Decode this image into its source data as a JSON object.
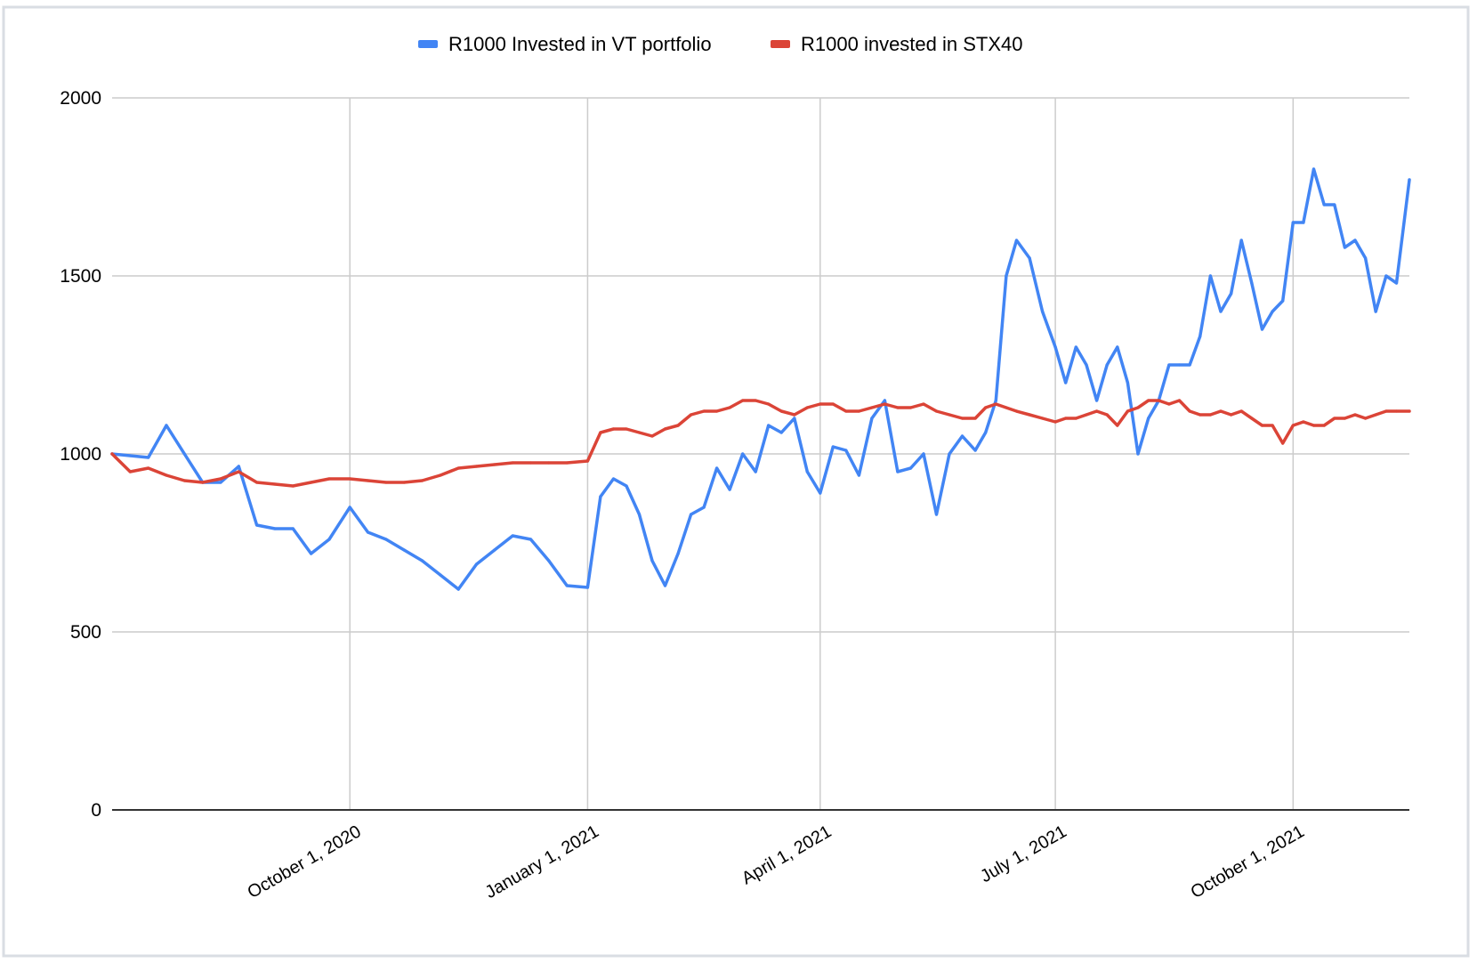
{
  "colors": {
    "background": "#ffffff",
    "grid": "#cccccc",
    "axis": "#333333",
    "sheet_border": "#d9dde3",
    "vt_series": "#4285f4",
    "stx40_series": "#db4437"
  },
  "chart_data": {
    "type": "line",
    "title": "",
    "xlabel": "",
    "ylabel": "",
    "ylim": [
      0,
      2000
    ],
    "xlim": [
      "2020-07-01",
      "2021-11-15"
    ],
    "y_ticks": [
      0,
      500,
      1000,
      1500,
      2000
    ],
    "y_tick_labels": [
      "0",
      "500",
      "1000",
      "1500",
      "2000"
    ],
    "x_ticks": [
      "2020-10-01",
      "2021-01-01",
      "2021-04-01",
      "2021-07-01",
      "2021-10-01"
    ],
    "x_tick_labels": [
      "October 1, 2020",
      "January 1, 2021",
      "April 1, 2021",
      "July 1, 2021",
      "October 1, 2021"
    ],
    "grid": true,
    "legend_position": "top",
    "series": [
      {
        "name": "R1000 Invested in VT portfolio",
        "color": "#4285f4",
        "x": [
          "2020-07-01",
          "2020-07-08",
          "2020-07-15",
          "2020-07-22",
          "2020-07-29",
          "2020-08-05",
          "2020-08-12",
          "2020-08-19",
          "2020-08-26",
          "2020-09-02",
          "2020-09-09",
          "2020-09-16",
          "2020-09-23",
          "2020-10-01",
          "2020-10-08",
          "2020-10-15",
          "2020-10-22",
          "2020-10-29",
          "2020-11-05",
          "2020-11-12",
          "2020-11-19",
          "2020-11-26",
          "2020-12-03",
          "2020-12-10",
          "2020-12-17",
          "2020-12-24",
          "2021-01-01",
          "2021-01-06",
          "2021-01-11",
          "2021-01-16",
          "2021-01-21",
          "2021-01-26",
          "2021-01-31",
          "2021-02-05",
          "2021-02-10",
          "2021-02-15",
          "2021-02-20",
          "2021-02-25",
          "2021-03-02",
          "2021-03-07",
          "2021-03-12",
          "2021-03-17",
          "2021-03-22",
          "2021-03-27",
          "2021-04-01",
          "2021-04-06",
          "2021-04-11",
          "2021-04-16",
          "2021-04-21",
          "2021-04-26",
          "2021-05-01",
          "2021-05-06",
          "2021-05-11",
          "2021-05-16",
          "2021-05-21",
          "2021-05-26",
          "2021-05-31",
          "2021-06-04",
          "2021-06-08",
          "2021-06-12",
          "2021-06-16",
          "2021-06-21",
          "2021-06-26",
          "2021-07-01",
          "2021-07-05",
          "2021-07-09",
          "2021-07-13",
          "2021-07-17",
          "2021-07-21",
          "2021-07-25",
          "2021-07-29",
          "2021-08-02",
          "2021-08-06",
          "2021-08-10",
          "2021-08-14",
          "2021-08-18",
          "2021-08-22",
          "2021-08-26",
          "2021-08-30",
          "2021-09-03",
          "2021-09-07",
          "2021-09-11",
          "2021-09-15",
          "2021-09-19",
          "2021-09-23",
          "2021-09-27",
          "2021-10-01",
          "2021-10-05",
          "2021-10-09",
          "2021-10-13",
          "2021-10-17",
          "2021-10-21",
          "2021-10-25",
          "2021-10-29",
          "2021-11-02",
          "2021-11-06",
          "2021-11-10",
          "2021-11-15"
        ],
        "values": [
          1000,
          995,
          990,
          1080,
          1000,
          920,
          920,
          965,
          800,
          790,
          790,
          720,
          760,
          850,
          780,
          760,
          730,
          700,
          660,
          620,
          690,
          730,
          770,
          760,
          700,
          630,
          625,
          880,
          930,
          910,
          830,
          700,
          630,
          720,
          830,
          850,
          960,
          900,
          1000,
          950,
          1080,
          1060,
          1100,
          950,
          890,
          1020,
          1010,
          940,
          1100,
          1150,
          950,
          960,
          1000,
          830,
          1000,
          1050,
          1010,
          1060,
          1150,
          1500,
          1600,
          1550,
          1400,
          1300,
          1200,
          1300,
          1250,
          1150,
          1250,
          1300,
          1200,
          1000,
          1100,
          1150,
          1250,
          1250,
          1250,
          1330,
          1500,
          1400,
          1450,
          1600,
          1480,
          1350,
          1400,
          1430,
          1650,
          1650,
          1800,
          1700,
          1700,
          1580,
          1600,
          1550,
          1400,
          1500,
          1480,
          1770
        ]
      },
      {
        "name": "R1000 invested in STX40",
        "color": "#db4437",
        "x": [
          "2020-07-01",
          "2020-07-08",
          "2020-07-15",
          "2020-07-22",
          "2020-07-29",
          "2020-08-05",
          "2020-08-12",
          "2020-08-19",
          "2020-08-26",
          "2020-09-02",
          "2020-09-09",
          "2020-09-16",
          "2020-09-23",
          "2020-10-01",
          "2020-10-08",
          "2020-10-15",
          "2020-10-22",
          "2020-10-29",
          "2020-11-05",
          "2020-11-12",
          "2020-11-19",
          "2020-11-26",
          "2020-12-03",
          "2020-12-10",
          "2020-12-17",
          "2020-12-24",
          "2021-01-01",
          "2021-01-06",
          "2021-01-11",
          "2021-01-16",
          "2021-01-21",
          "2021-01-26",
          "2021-01-31",
          "2021-02-05",
          "2021-02-10",
          "2021-02-15",
          "2021-02-20",
          "2021-02-25",
          "2021-03-02",
          "2021-03-07",
          "2021-03-12",
          "2021-03-17",
          "2021-03-22",
          "2021-03-27",
          "2021-04-01",
          "2021-04-06",
          "2021-04-11",
          "2021-04-16",
          "2021-04-21",
          "2021-04-26",
          "2021-05-01",
          "2021-05-06",
          "2021-05-11",
          "2021-05-16",
          "2021-05-21",
          "2021-05-26",
          "2021-05-31",
          "2021-06-04",
          "2021-06-08",
          "2021-06-12",
          "2021-06-16",
          "2021-06-21",
          "2021-06-26",
          "2021-07-01",
          "2021-07-05",
          "2021-07-09",
          "2021-07-13",
          "2021-07-17",
          "2021-07-21",
          "2021-07-25",
          "2021-07-29",
          "2021-08-02",
          "2021-08-06",
          "2021-08-10",
          "2021-08-14",
          "2021-08-18",
          "2021-08-22",
          "2021-08-26",
          "2021-08-30",
          "2021-09-03",
          "2021-09-07",
          "2021-09-11",
          "2021-09-15",
          "2021-09-19",
          "2021-09-23",
          "2021-09-27",
          "2021-10-01",
          "2021-10-05",
          "2021-10-09",
          "2021-10-13",
          "2021-10-17",
          "2021-10-21",
          "2021-10-25",
          "2021-10-29",
          "2021-11-02",
          "2021-11-06",
          "2021-11-10",
          "2021-11-15"
        ],
        "values": [
          1000,
          950,
          960,
          940,
          925,
          920,
          930,
          950,
          920,
          915,
          910,
          920,
          930,
          930,
          925,
          920,
          920,
          925,
          940,
          960,
          965,
          970,
          975,
          975,
          975,
          975,
          980,
          1060,
          1070,
          1070,
          1060,
          1050,
          1070,
          1080,
          1110,
          1120,
          1120,
          1130,
          1150,
          1150,
          1140,
          1120,
          1110,
          1130,
          1140,
          1140,
          1120,
          1120,
          1130,
          1140,
          1130,
          1130,
          1140,
          1120,
          1110,
          1100,
          1100,
          1130,
          1140,
          1130,
          1120,
          1110,
          1100,
          1090,
          1100,
          1100,
          1110,
          1120,
          1110,
          1080,
          1120,
          1130,
          1150,
          1150,
          1140,
          1150,
          1120,
          1110,
          1110,
          1120,
          1110,
          1120,
          1100,
          1080,
          1080,
          1030,
          1080,
          1090,
          1080,
          1080,
          1100,
          1100,
          1110,
          1100,
          1110,
          1120,
          1120,
          1120
        ]
      }
    ]
  }
}
